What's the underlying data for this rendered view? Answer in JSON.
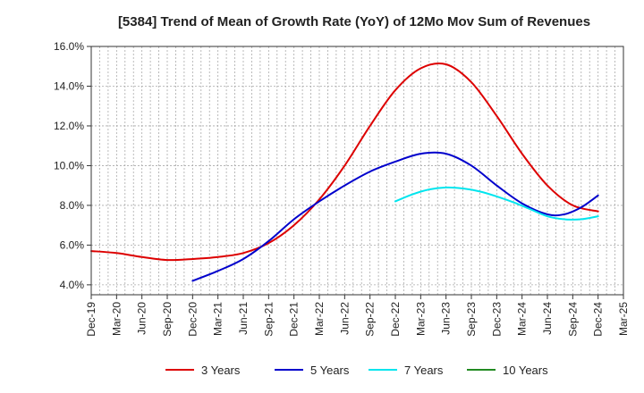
{
  "chart_data": {
    "type": "line",
    "title": "[5384]  Trend of Mean of Growth Rate (YoY) of 12Mo Mov Sum of Revenues",
    "xlabel": "",
    "ylabel": "",
    "ylim": [
      3.5,
      16.0
    ],
    "yticks": [
      4.0,
      6.0,
      8.0,
      10.0,
      12.0,
      14.0,
      16.0
    ],
    "ytick_labels": [
      "4.0%",
      "6.0%",
      "8.0%",
      "10.0%",
      "12.0%",
      "14.0%",
      "16.0%"
    ],
    "x_range_months": [
      0,
      63
    ],
    "xtick_positions": [
      0,
      3,
      6,
      9,
      12,
      15,
      18,
      21,
      24,
      27,
      30,
      33,
      36,
      39,
      42,
      45,
      48,
      51,
      54,
      57,
      60,
      63
    ],
    "xtick_labels": [
      "Dec-19",
      "Mar-20",
      "Jun-20",
      "Sep-20",
      "Dec-20",
      "Mar-21",
      "Jun-21",
      "Sep-21",
      "Dec-21",
      "Mar-22",
      "Jun-22",
      "Sep-22",
      "Dec-22",
      "Mar-23",
      "Jun-23",
      "Sep-23",
      "Dec-23",
      "Mar-24",
      "Jun-24",
      "Sep-24",
      "Dec-24",
      "Mar-25"
    ],
    "grid": true,
    "legend_position": "bottom",
    "series": [
      {
        "name": "3 Years",
        "color": "#dd0000",
        "x": [
          0,
          3,
          6,
          9,
          12,
          15,
          18,
          21,
          24,
          27,
          30,
          33,
          36,
          39,
          42,
          45,
          48,
          51,
          54,
          57,
          60
        ],
        "values": [
          5.7,
          5.6,
          5.4,
          5.25,
          5.3,
          5.4,
          5.6,
          6.1,
          7.0,
          8.3,
          10.0,
          12.0,
          13.8,
          14.9,
          15.1,
          14.2,
          12.5,
          10.6,
          9.0,
          8.0,
          7.7
        ]
      },
      {
        "name": "5 Years",
        "color": "#0000cc",
        "x": [
          12,
          15,
          18,
          21,
          24,
          27,
          30,
          33,
          36,
          39,
          42,
          45,
          48,
          51,
          54,
          56,
          58,
          60
        ],
        "values": [
          4.2,
          4.7,
          5.3,
          6.2,
          7.3,
          8.2,
          9.0,
          9.7,
          10.2,
          10.6,
          10.6,
          10.0,
          9.0,
          8.1,
          7.55,
          7.55,
          7.9,
          8.5
        ]
      },
      {
        "name": "7 Years",
        "color": "#00e5ee",
        "x": [
          36,
          38,
          40,
          42,
          44,
          46,
          48,
          50,
          52,
          54,
          56,
          58,
          60
        ],
        "values": [
          8.2,
          8.55,
          8.8,
          8.9,
          8.85,
          8.7,
          8.45,
          8.15,
          7.8,
          7.45,
          7.3,
          7.3,
          7.45
        ]
      },
      {
        "name": "10 Years",
        "color": "#228b22",
        "x": [],
        "values": []
      }
    ]
  }
}
